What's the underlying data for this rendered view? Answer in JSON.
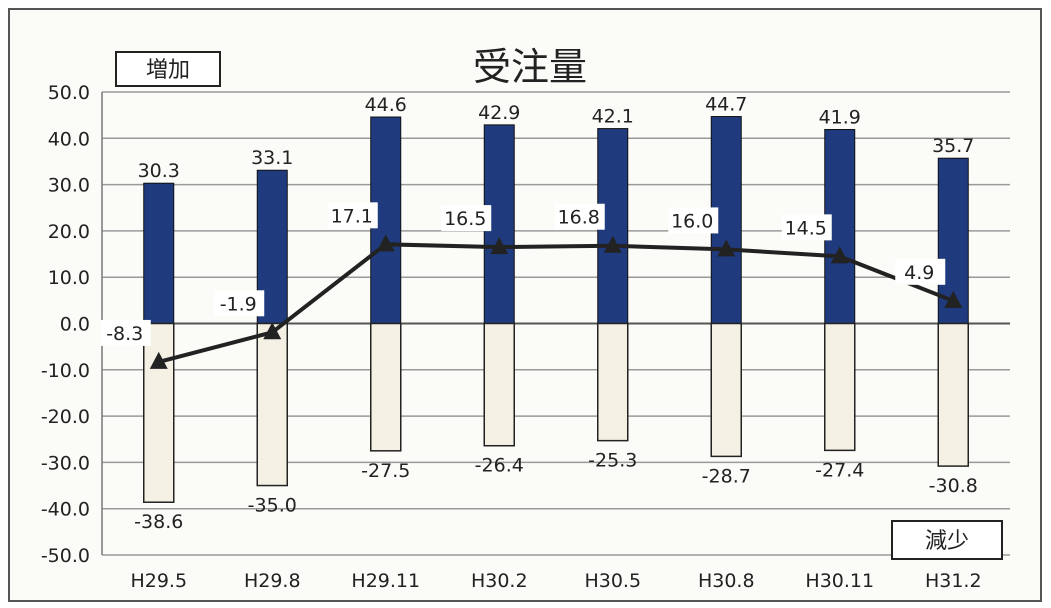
{
  "chart_data": {
    "type": "bar",
    "title": "受注量",
    "legend_increase": "増加",
    "legend_decrease": "減少",
    "categories": [
      "H29.5",
      "H29.8",
      "H29.11",
      "H30.2",
      "H30.5",
      "H30.8",
      "H30.11",
      "H31.2"
    ],
    "series": [
      {
        "name": "増加",
        "type": "bar",
        "values": [
          30.3,
          33.1,
          44.6,
          42.9,
          42.1,
          44.7,
          41.9,
          35.7
        ]
      },
      {
        "name": "減少",
        "type": "bar",
        "values": [
          -38.6,
          -35.0,
          -27.5,
          -26.4,
          -25.3,
          -28.7,
          -27.4,
          -30.8
        ]
      },
      {
        "type": "line",
        "values": [
          -8.3,
          -1.9,
          17.1,
          16.5,
          16.8,
          16.0,
          14.5,
          4.9
        ]
      }
    ],
    "ylim": [
      -50,
      50
    ],
    "y_ticks": [
      "50.0",
      "40.0",
      "30.0",
      "20.0",
      "10.0",
      "0.0",
      "-10.0",
      "-20.0",
      "-30.0",
      "-40.0",
      "-50.0"
    ],
    "grid": true,
    "colors": {
      "increase": "#1f3a7d",
      "decrease": "#f4f1e4",
      "line": "#222222",
      "grid": "#9a9a9a"
    }
  }
}
